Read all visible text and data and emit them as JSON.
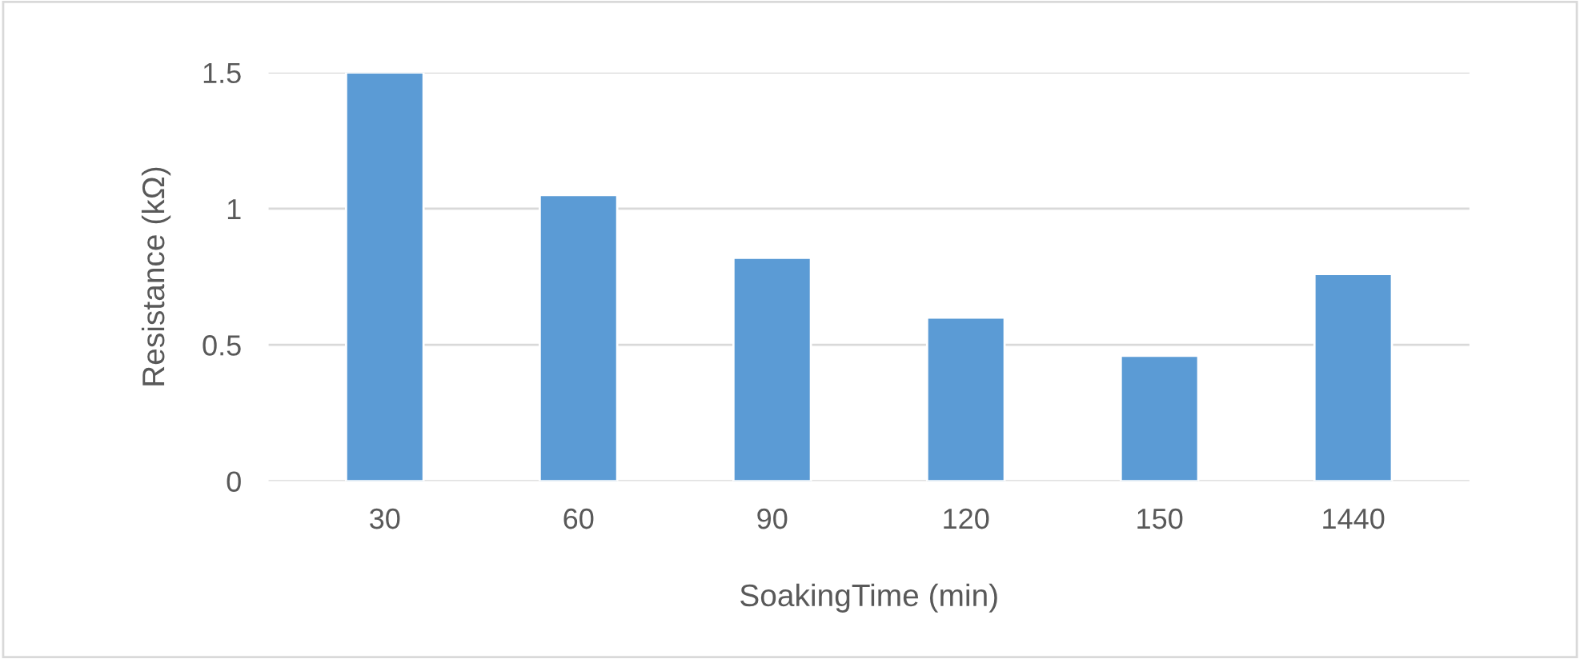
{
  "chart_data": {
    "type": "bar",
    "xlabel": "SoakingTime (min)",
    "ylabel": "Resistance (kΩ)",
    "categories": [
      "30",
      "60",
      "90",
      "120",
      "150",
      "1440"
    ],
    "values": [
      1.5,
      1.05,
      0.82,
      0.6,
      0.46,
      0.76
    ],
    "color": "#5b9bd5",
    "ylim": [
      0,
      1.5
    ],
    "yticks": [
      0,
      0.5,
      1,
      1.5
    ],
    "grid": "y",
    "legend": false
  }
}
